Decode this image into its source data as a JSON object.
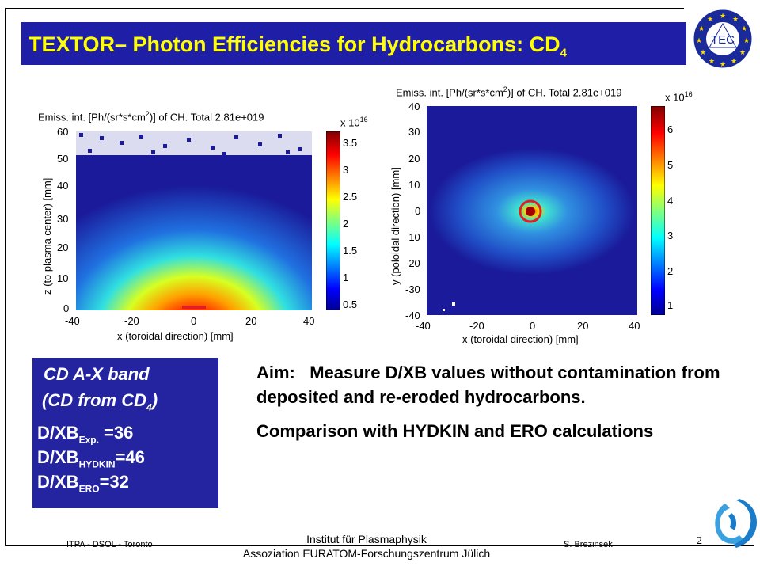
{
  "slide": {
    "title": "TEXTOR– Photon Efficiencies for Hydrocarbons: CD",
    "title_sub": "4",
    "logo_text": "TEC"
  },
  "plots": [
    {
      "title_a": "Emiss. int. [Ph/(sr*s*cm",
      "title_sup": "2",
      "title_b": ")] of CH. Total 2.81e+019",
      "colorbar_exp_base": "x 10",
      "colorbar_exp_sup": "16",
      "colorbar_ticks": [
        "3.5",
        "3",
        "2.5",
        "2",
        "1.5",
        "1",
        "0.5"
      ],
      "x_ticks": [
        "-40",
        "-20",
        "0",
        "20",
        "40"
      ],
      "y_ticks": [
        "60",
        "50",
        "40",
        "30",
        "20",
        "10",
        "0"
      ],
      "xlabel": "x (toroidal direction) [mm]",
      "ylabel": "z (to plasma center) [mm]"
    },
    {
      "title_a": "Emiss. int. [Ph/(sr*s*cm",
      "title_sup": "2",
      "title_b": ")] of CH. Total 2.81e+019",
      "colorbar_exp_base": "x 10",
      "colorbar_exp_sup": "16",
      "colorbar_ticks": [
        "6",
        "5",
        "4",
        "3",
        "2",
        "1"
      ],
      "x_ticks": [
        "-40",
        "-20",
        "0",
        "20",
        "40"
      ],
      "y_ticks": [
        "40",
        "30",
        "20",
        "10",
        "0",
        "-10",
        "-20",
        "-30",
        "-40"
      ],
      "xlabel": "x (toroidal direction) [mm]",
      "ylabel": "y (poloidal direction) [mm]"
    }
  ],
  "info_box": {
    "line1": "CD A-X band",
    "line2_a": "(CD from CD",
    "line2_sub": "4",
    "line2_b": ")",
    "exp_main": "D/XB",
    "exp_sub": "Exp.",
    "exp_val": " =36",
    "hydkin_main": "D/XB",
    "hydkin_sub": "HYDKIN",
    "hydkin_val": "=46",
    "ero_main": "D/XB",
    "ero_sub": "ERO",
    "ero_val": "=32"
  },
  "aim": {
    "p1": "Aim:   Measure D/XB values without contamination from deposited and re-eroded hydrocarbons.",
    "p2": "Comparison with HYDKIN and ERO calculations"
  },
  "footer": {
    "left": "ITPA  - DSOL - Toronto",
    "center_line1": "Institut für Plasmaphysik",
    "center_line2": "Assoziation EURATOM-Forschungszentrum Jülich",
    "right": "S. Brezinsek",
    "page": "2"
  },
  "colors": {
    "title_bar": "#1f1ea6",
    "title_text": "#ffff00",
    "info_box": "#2424a0",
    "plot_background": "#1a1a9a"
  }
}
